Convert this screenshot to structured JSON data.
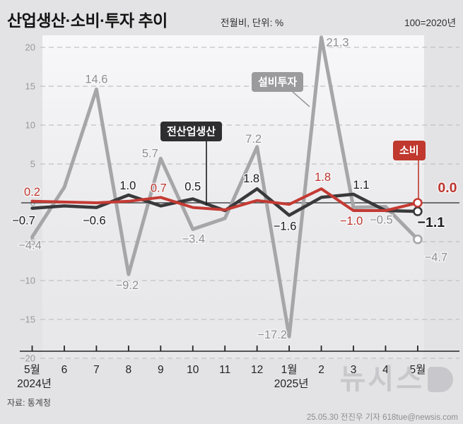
{
  "header": {
    "title": "산업생산·소비·투자 추이",
    "subtitle": "전월비, 단위:  %",
    "right_note": "100=2020년"
  },
  "chart_data": {
    "type": "line",
    "title": "산업생산·소비·투자 추이",
    "unit": "전월비, %",
    "base_note": "100=2020년",
    "x_labels": [
      "5월",
      "6",
      "7",
      "8",
      "9",
      "10",
      "11",
      "12",
      "1월",
      "2",
      "3",
      "4",
      "5월"
    ],
    "x_year_labels": [
      {
        "index": 0,
        "label": "2024년"
      },
      {
        "index": 8,
        "label": "2025년"
      }
    ],
    "ylim": [
      -20,
      22
    ],
    "y_ticks": [
      20,
      15,
      10,
      5,
      0,
      -5,
      -10,
      -15,
      -20
    ],
    "grid": "dashed-horizontal",
    "series": [
      {
        "key": "facility-investment",
        "name": "설비투자",
        "color": "#a6a6a9",
        "label_color": "#909094",
        "width": 5,
        "values": [
          -4.4,
          2.0,
          14.6,
          -9.2,
          5.7,
          -3.4,
          -2.0,
          7.2,
          -17.2,
          21.3,
          -0.6,
          -0.5,
          -4.7
        ],
        "labels": [
          {
            "i": 0,
            "t": "−4.4",
            "dx": -3,
            "dy": 17
          },
          {
            "i": 2,
            "t": "14.6",
            "dx": 0,
            "dy": -9
          },
          {
            "i": 3,
            "t": "−9.2",
            "dx": -2,
            "dy": 21
          },
          {
            "i": 4,
            "t": "5.7",
            "dx": -15,
            "dy": -2
          },
          {
            "i": 5,
            "t": "−3.4",
            "dx": 1,
            "dy": 19
          },
          {
            "i": 7,
            "t": "7.2",
            "dx": -5,
            "dy": -6
          },
          {
            "i": 8,
            "t": "−17.2",
            "dx": -24,
            "dy": 3
          },
          {
            "i": 9,
            "t": "21.3",
            "dx": 23,
            "dy": 13
          },
          {
            "i": 11,
            "t": "−0.5",
            "dx": -6,
            "dy": 24
          },
          {
            "i": 12,
            "t": "−4.7",
            "dx": 26,
            "dy": 31
          }
        ]
      },
      {
        "key": "all-industry-production",
        "name": "전산업생산",
        "color": "#39393b",
        "label_color": "#1b1b1d",
        "width": 4.5,
        "values": [
          -0.7,
          -0.4,
          -0.6,
          1.0,
          -0.4,
          0.5,
          -1.0,
          1.8,
          -1.6,
          0.7,
          1.1,
          -1.0,
          -1.1
        ],
        "labels": [
          {
            "i": 0,
            "t": "−0.7",
            "dx": -12,
            "dy": 23
          },
          {
            "i": 2,
            "t": "−0.6",
            "dx": -3,
            "dy": 24
          },
          {
            "i": 3,
            "t": "1.0",
            "dx": -1,
            "dy": -8
          },
          {
            "i": 5,
            "t": "0.5",
            "dx": 0,
            "dy": -12
          },
          {
            "i": 7,
            "t": "1.8",
            "dx": -8,
            "dy": -9
          },
          {
            "i": 8,
            "t": "−1.6",
            "dx": -6,
            "dy": 21
          },
          {
            "i": 10,
            "t": "1.1",
            "dx": 11,
            "dy": -8
          },
          {
            "i": 12,
            "t": "−1.1",
            "dx": 19,
            "dy": 22,
            "big": true
          }
        ]
      },
      {
        "key": "consumption",
        "name": "소비",
        "color": "#c43a33",
        "label_color": "#c0362f",
        "width": 4,
        "values": [
          0.2,
          0.1,
          0.0,
          0.2,
          0.7,
          -0.6,
          -0.9,
          0.3,
          -0.2,
          1.8,
          -1.0,
          -1.0,
          0.0
        ],
        "labels": [
          {
            "i": 0,
            "t": "0.2",
            "dx": 0,
            "dy": -8
          },
          {
            "i": 4,
            "t": "0.7",
            "dx": -3,
            "dy": -8
          },
          {
            "i": 9,
            "t": "1.8",
            "dx": 2,
            "dy": -11
          },
          {
            "i": 10,
            "t": "−1.0",
            "dx": -3,
            "dy": 20
          },
          {
            "i": 12,
            "t": "0.0",
            "dx": 42,
            "dy": -15,
            "big": true
          }
        ]
      }
    ]
  },
  "annotations": [
    {
      "key": "capex",
      "line": [
        413,
        129,
        438,
        151
      ],
      "line_color": "#9b9b9e"
    },
    {
      "key": "production",
      "line": [
        292,
        199,
        292,
        291
      ],
      "line_color": "#1b1b1d"
    },
    {
      "key": "consumption",
      "line": [
        592,
        226,
        592,
        281
      ],
      "line_color": "#c0382e"
    }
  ],
  "footer": {
    "source": "자료: 통계청",
    "credit": "25.05.30 전진우 기자 618tue@newsis.com",
    "logo_text": "뉴시스"
  },
  "colors": {
    "background": "#e3e3e5",
    "plot_band_top": "#f8f8fa",
    "plot_band_bottom": "#e7e7e9",
    "accent_red": "#c43a33",
    "accent_black": "#39393b",
    "accent_gray": "#a6a6a9"
  }
}
